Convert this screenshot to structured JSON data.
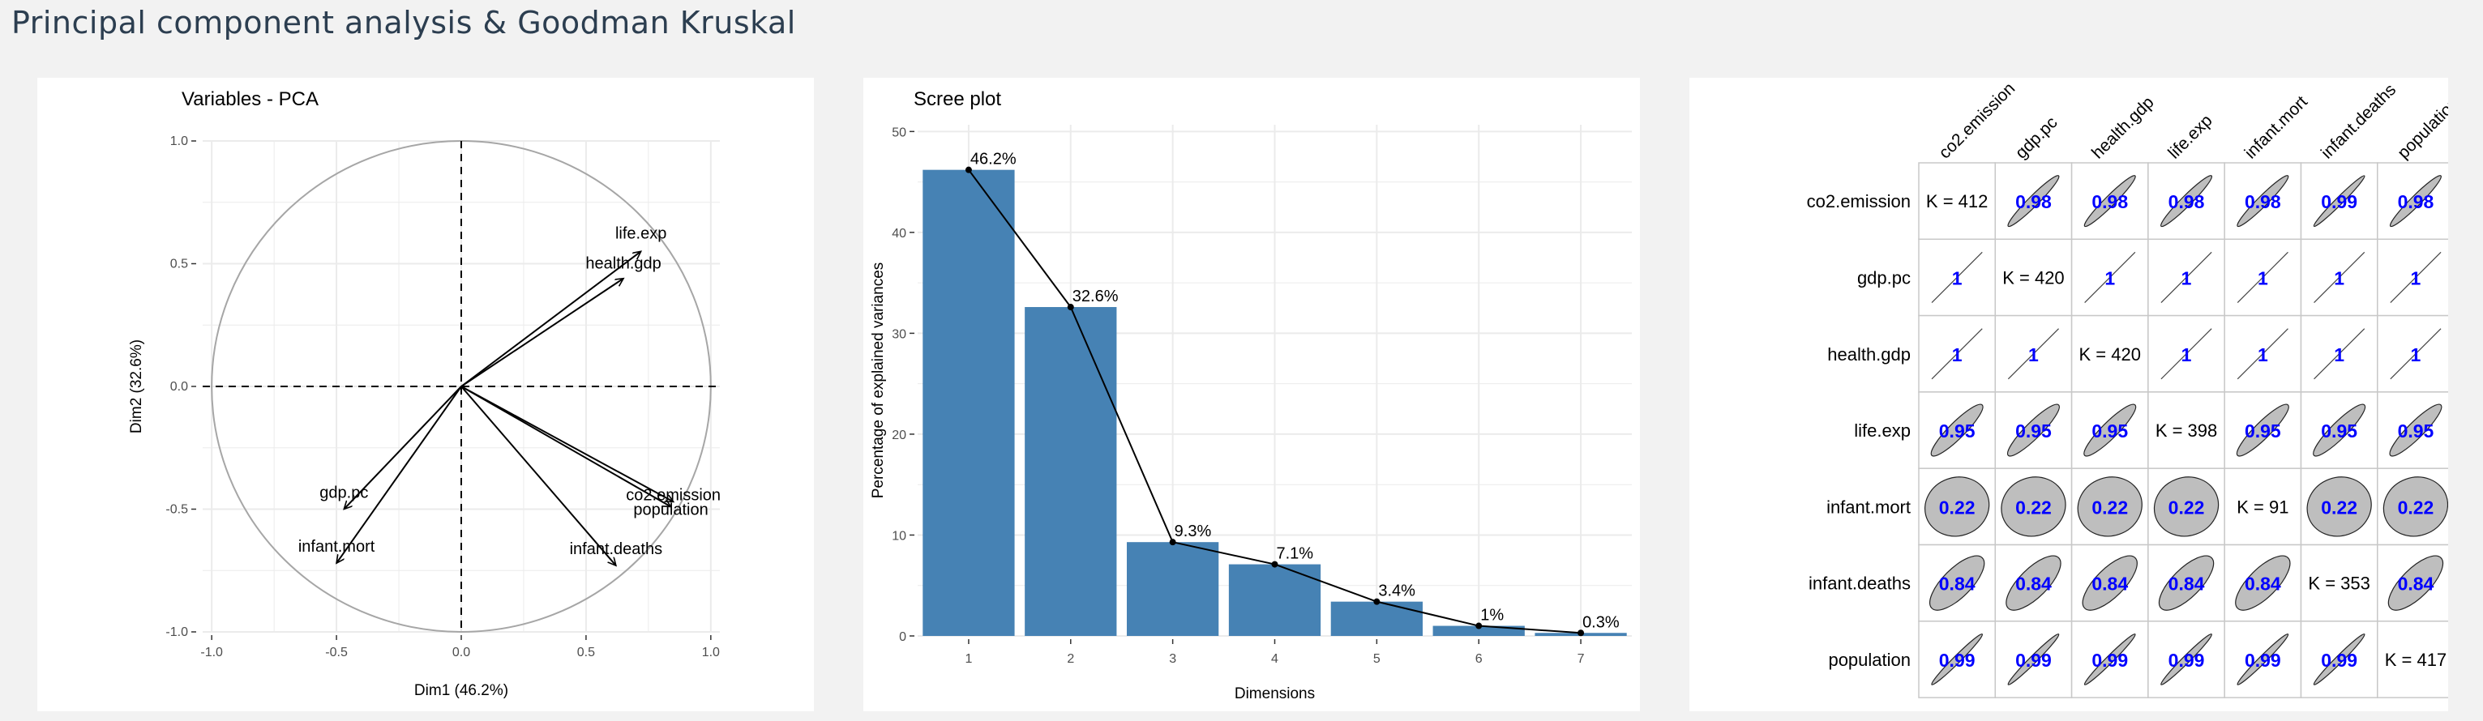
{
  "page": {
    "title": "Principal component analysis & Goodman Kruskal"
  },
  "colors": {
    "bar": "#4682B4",
    "grid": "#ebebeb",
    "circle": "#a6a6a6",
    "gk_value": "#0000ff",
    "ellipse_fill": "#bebebe"
  },
  "chart_data": [
    {
      "type": "scatter",
      "subtype": "pca-variables",
      "title": "Variables - PCA",
      "xlabel": "Dim1 (46.2%)",
      "ylabel": "Dim2 (32.6%)",
      "xlim": [
        -1.0,
        1.0
      ],
      "ylim": [
        -1.0,
        1.0
      ],
      "xticks": [
        "-1.0",
        "-0.5",
        "0.0",
        "0.5",
        "1.0"
      ],
      "yticks": [
        "-1.0",
        "-0.5",
        "0.0",
        "0.5",
        "1.0"
      ],
      "grid": true,
      "points": [
        {
          "name": "life.exp",
          "x": 0.72,
          "y": 0.55
        },
        {
          "name": "health.gdp",
          "x": 0.65,
          "y": 0.44
        },
        {
          "name": "co2.emission",
          "x": 0.85,
          "y": -0.47
        },
        {
          "name": "population",
          "x": 0.84,
          "y": -0.49
        },
        {
          "name": "gdp.pc",
          "x": -0.47,
          "y": -0.5
        },
        {
          "name": "infant.mort",
          "x": -0.5,
          "y": -0.72
        },
        {
          "name": "infant.deaths",
          "x": 0.62,
          "y": -0.73
        }
      ]
    },
    {
      "type": "bar",
      "title": "Scree plot",
      "xlabel": "Dimensions",
      "ylabel": "Percentage of explained variances",
      "categories": [
        "1",
        "2",
        "3",
        "4",
        "5",
        "6",
        "7"
      ],
      "values": [
        46.2,
        32.6,
        9.3,
        7.1,
        3.4,
        1.0,
        0.3
      ],
      "labels": [
        "46.2%",
        "32.6%",
        "9.3%",
        "7.1%",
        "3.4%",
        "1%",
        "0.3%"
      ],
      "ylim": [
        0,
        50
      ],
      "yticks": [
        "0",
        "10",
        "20",
        "30",
        "40",
        "50"
      ],
      "grid": true,
      "line_overlay": true
    },
    {
      "type": "table",
      "subtype": "goodman-kruskal-matrix",
      "variables": [
        "co2.emission",
        "gdp.pc",
        "health.gdp",
        "life.exp",
        "infant.mort",
        "infant.deaths",
        "population"
      ],
      "diagonal": [
        "K = 412",
        "K = 420",
        "K = 420",
        "K = 398",
        "K = 91",
        "K = 353",
        "K = 417"
      ],
      "cells": [
        [
          null,
          "0.98",
          "0.98",
          "0.98",
          "0.98",
          "0.99",
          "0.98"
        ],
        [
          "1",
          null,
          "1",
          "1",
          "1",
          "1",
          "1"
        ],
        [
          "1",
          "1",
          null,
          "1",
          "1",
          "1",
          "1"
        ],
        [
          "0.95",
          "0.95",
          "0.95",
          null,
          "0.95",
          "0.95",
          "0.95"
        ],
        [
          "0.22",
          "0.22",
          "0.22",
          "0.22",
          null,
          "0.22",
          "0.22"
        ],
        [
          "0.84",
          "0.84",
          "0.84",
          "0.84",
          "0.84",
          null,
          "0.84"
        ],
        [
          "0.99",
          "0.99",
          "0.99",
          "0.99",
          "0.99",
          "0.99",
          null
        ]
      ]
    }
  ]
}
